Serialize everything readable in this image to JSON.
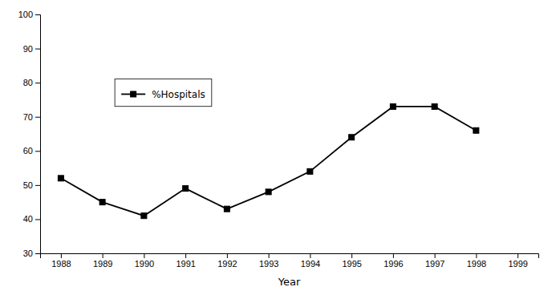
{
  "chart_data": {
    "type": "line",
    "xlabel": "Year",
    "x": [
      1988,
      1989,
      1990,
      1991,
      1992,
      1993,
      1994,
      1995,
      1996,
      1997,
      1998
    ],
    "series": [
      {
        "name": "%Hospitals",
        "color": "#000000",
        "marker": "square",
        "values": [
          52,
          45,
          41,
          49,
          43,
          48,
          54,
          64,
          73,
          73,
          66
        ]
      }
    ],
    "xlim": [
      1987.5,
      1999.5
    ],
    "xticks": [
      1988,
      1989,
      1990,
      1991,
      1992,
      1993,
      1994,
      1995,
      1996,
      1997,
      1998,
      1999
    ],
    "ylim": [
      30,
      100
    ],
    "yticks": [
      30,
      40,
      50,
      60,
      70,
      80,
      90,
      100
    ],
    "grid": false,
    "legend": "upper left"
  }
}
